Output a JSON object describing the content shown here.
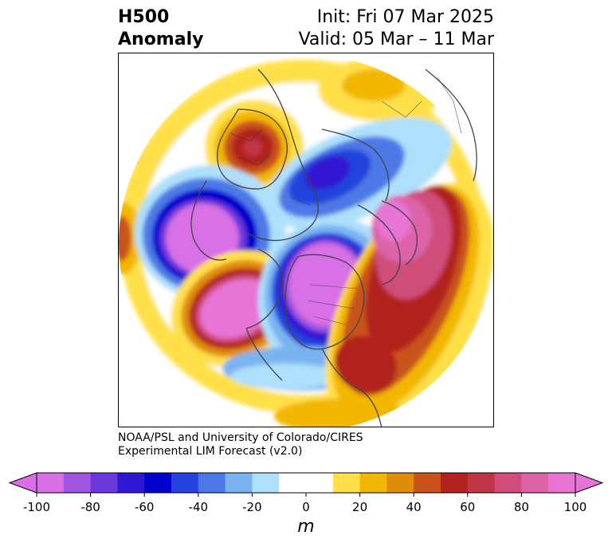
{
  "header": {
    "title_line1": "H500",
    "title_line2": "Anomaly",
    "init_text": "Init: Fri 07 Mar 2025",
    "valid_text": "Valid: 05 Mar – 11 Mar"
  },
  "credit": {
    "line1": "NOAA/PSL and University of Colorado/CIRES",
    "line2": "Experimental LIM Forecast (v2.0)"
  },
  "colorbar": {
    "units": "m",
    "tick_labels": [
      "-100",
      "-80",
      "-60",
      "-40",
      "-20",
      "0",
      "20",
      "40",
      "60",
      "80",
      "100"
    ],
    "colors": [
      "#d86fe6",
      "#9f55de",
      "#6a38db",
      "#3017d2",
      "#0000cc",
      "#2343dc",
      "#4d79e6",
      "#7ab4f0",
      "#aee0fb",
      "#ffffff",
      "#ffffff",
      "#ffe04a",
      "#f2b705",
      "#e08c0b",
      "#c9521a",
      "#b1231f",
      "#c03545",
      "#cf4d7a",
      "#dc63a8",
      "#e774d5"
    ],
    "under_color": "#d86fe6",
    "over_color": "#e774d5"
  },
  "anomaly_colors": {
    "strong_negative": "#d86fe6",
    "negative": "#0000cc",
    "weak_negative": "#7ab4f0",
    "weak_positive": "#ffe04a",
    "positive": "#e08c0b",
    "strong_positive": "#b1231f",
    "extreme_positive": "#e774d5"
  }
}
